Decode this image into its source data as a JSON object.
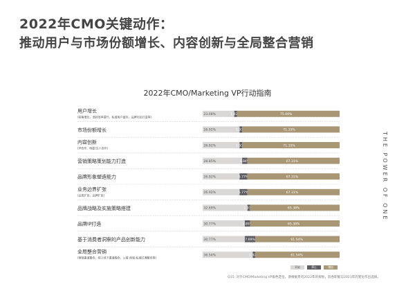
{
  "header": {
    "title_line1": "2022年CMO关键动作：",
    "title_line2": "推动用户与市场份额增长、内容创新与全局整合营销"
  },
  "side_text": "THE POWER OF ONE",
  "footnote": "Q15: 对于CMO/Marketing VP角色定位，请根据贵司2022年的规划，较各职能与2021年的变化作出选择。",
  "colors": {
    "start": "#d9d8d6",
    "stop": "#5e5d62",
    "increase": "#a89675",
    "text_light": "#ffffff",
    "text_dark": "#555555"
  },
  "chart_data": {
    "type": "bar",
    "orientation": "horizontal",
    "stacked": true,
    "title": "2022年CMO/Marketing VP行动指南",
    "xlim": [
      0,
      100
    ],
    "categories": [
      {
        "label": "用户增长",
        "sub": "(获客增长，流转效率提升，私域用户留存，品牌社区打造等)"
      },
      {
        "label": "市场份额增长",
        "sub": ""
      },
      {
        "label": "内容创新",
        "sub": "(IP合作、明星/达人合作)"
      },
      {
        "label": "营销策略策划能力打造",
        "sub": ""
      },
      {
        "label": "品牌形象塑造能力",
        "sub": ""
      },
      {
        "label": "业务边界扩张",
        "sub": "(品类扩张，品牌扩张)"
      },
      {
        "label": "品牌战略及实施策略搭建",
        "sub": ""
      },
      {
        "label": "品牌IP打造",
        "sub": ""
      },
      {
        "label": "基于消费者洞察的产品创新能力",
        "sub": ""
      },
      {
        "label": "全局整合营销",
        "sub": "(营销渠道整合，线上线下渠道融合，公域-商域-私域打通整合等)"
      }
    ],
    "series": [
      {
        "name": "开始",
        "values": [
          23.08,
          26.92,
          26.92,
          28.85,
          26.92,
          26.92,
          32.69,
          30.77,
          30.77,
          36.54
        ],
        "labels": [
          "23.08%",
          "26.92%",
          "26.92%",
          "28.85%",
          "26.92%",
          "26.92%",
          "32.69%",
          "30.77%",
          "30.77%",
          "36.54%"
        ]
      },
      {
        "name": "停止",
        "values": [
          1.92,
          1.93,
          1.93,
          3.84,
          5.77,
          5.77,
          1.93,
          3.85,
          7.69,
          1.92
        ],
        "labels": [
          "1.92%",
          "1.93%",
          "1.93%",
          "3.84%",
          "5.77%",
          "5.77%",
          "1.93%",
          "3.85%",
          "7.69%",
          "1.92%"
        ]
      },
      {
        "name": "增加",
        "values": [
          75.0,
          71.15,
          71.15,
          67.31,
          67.31,
          67.31,
          65.38,
          65.38,
          61.54,
          61.54
        ],
        "labels": [
          "75.00%",
          "71.15%",
          "71.15%",
          "67.31%",
          "67.31%",
          "67.31%",
          "65.38%",
          "65.38%",
          "61.54%",
          "61.54%"
        ]
      }
    ],
    "legend": [
      "开始",
      "停止",
      "增加"
    ],
    "legend_position": "bottom-right"
  }
}
